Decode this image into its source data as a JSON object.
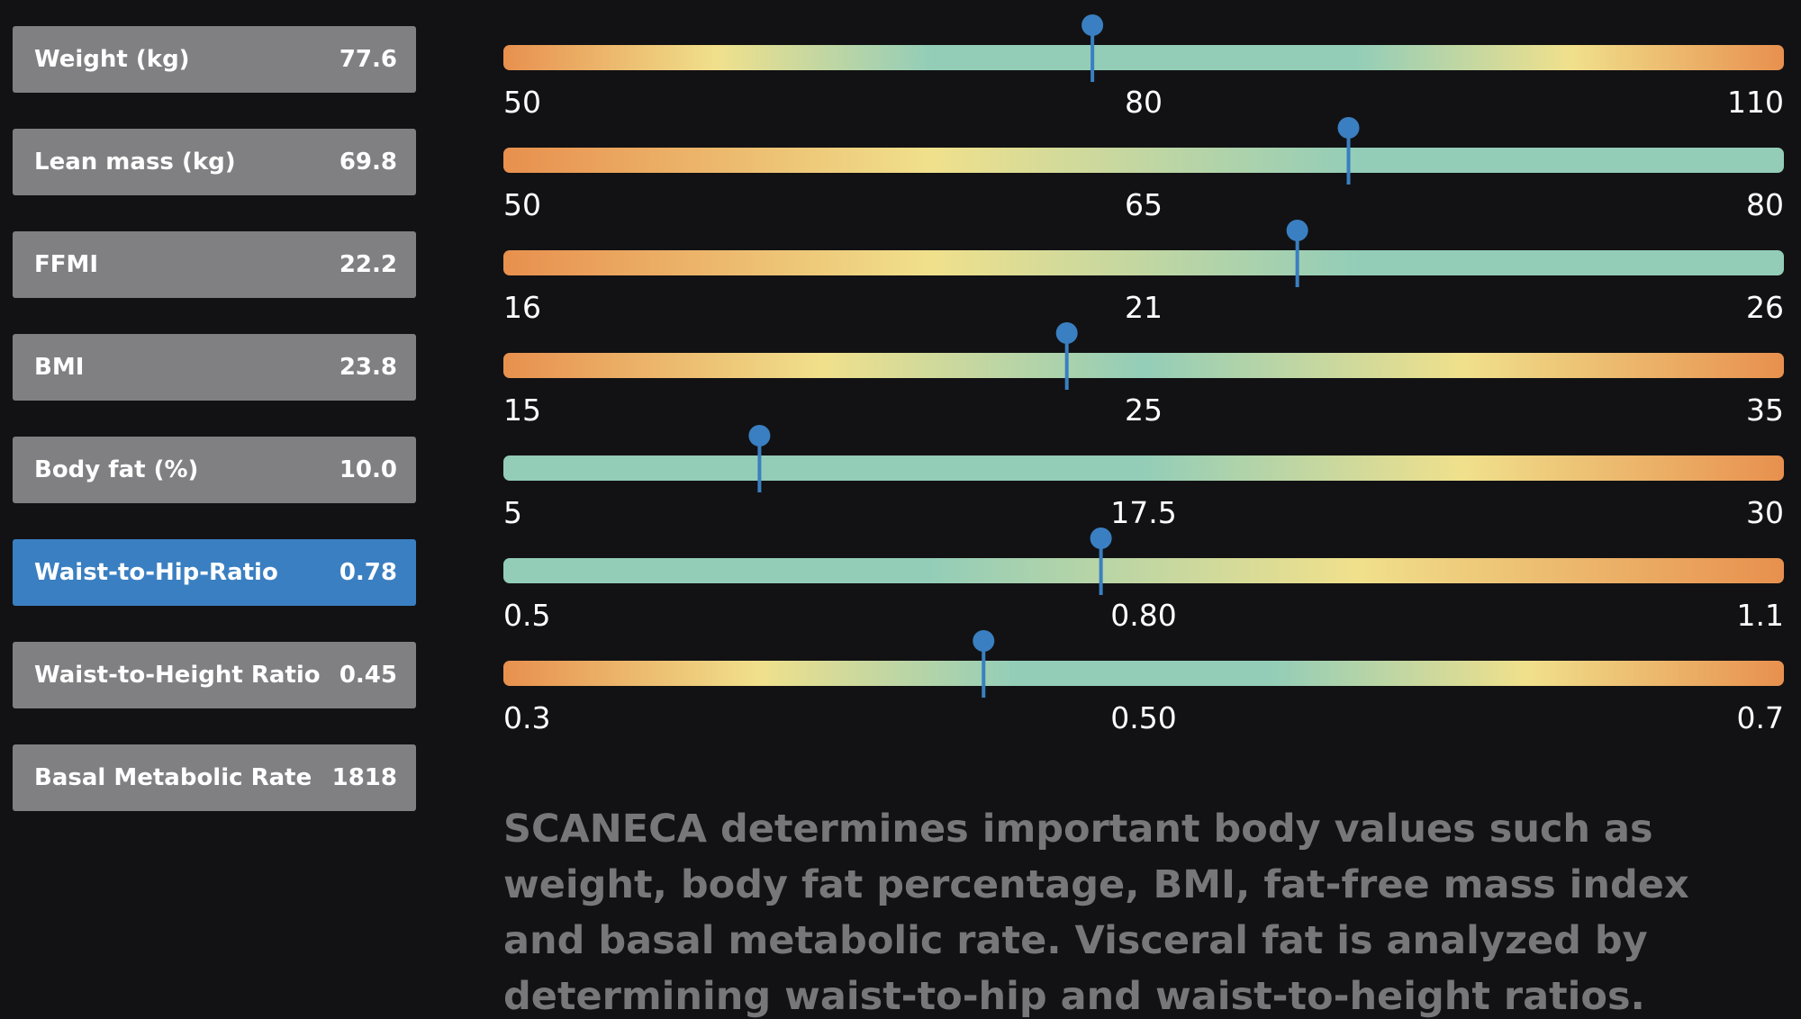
{
  "selected": 5,
  "marker_color": "#3a7fc1",
  "metrics": [
    {
      "label": "Weight (kg)",
      "value": 77.6,
      "ticks": [
        50,
        80,
        110
      ],
      "gradient": [
        "#e8904e",
        "#f0e08c",
        "#93cdb8",
        "#93cdb8",
        "#93cdb8",
        "#f0e08c",
        "#e8904e"
      ]
    },
    {
      "label": "Lean mass (kg)",
      "value": 69.8,
      "ticks": [
        50,
        65,
        80
      ],
      "gradient": [
        "#e8904e",
        "#f0e08c",
        "#93cdb8",
        "#93cdb8"
      ]
    },
    {
      "label": "FFMI",
      "value": 22.2,
      "ticks": [
        16,
        21,
        26
      ],
      "gradient": [
        "#e8904e",
        "#f0e08c",
        "#93cdb8",
        "#93cdb8"
      ]
    },
    {
      "label": "BMI",
      "value": 23.8,
      "ticks": [
        15,
        25,
        35
      ],
      "gradient": [
        "#e8904e",
        "#f0e08c",
        "#93cdb8",
        "#f0e08c",
        "#e8904e"
      ]
    },
    {
      "label": "Body fat (%)",
      "value": 10,
      "value_label": "10.0",
      "ticks": [
        5,
        17.5,
        30
      ],
      "gradient": [
        "#93cdb8",
        "#93cdb8",
        "#93cdb8",
        "#f0e08c",
        "#e8904e"
      ]
    },
    {
      "label": "Waist-to-Hip-Ratio",
      "value": 0.78,
      "ticks": [
        0.5,
        {
          "value": 0.8,
          "label": "0.80"
        },
        1.1
      ],
      "gradient": [
        "#93cdb8",
        "#93cdb8",
        "#f0e08c",
        "#e8904e"
      ]
    },
    {
      "label": "Waist-to-Height Ratio",
      "value": 0.45,
      "ticks": [
        0.3,
        {
          "value": 0.5,
          "label": "0.50"
        },
        0.7
      ],
      "gradient": [
        "#e8904e",
        "#f0e08c",
        "#93cdb8",
        "#93cdb8",
        "#f0e08c",
        "#e8904e"
      ]
    },
    {
      "label": "Basal Metabolic Rate",
      "value": 1818
    }
  ],
  "description": "SCANECA determines important body values such as weight, body fat percentage, BMI, fat-free mass index and basal metabolic rate. Visceral fat is analyzed by determining waist-to-hip and waist-to-height ratios."
}
